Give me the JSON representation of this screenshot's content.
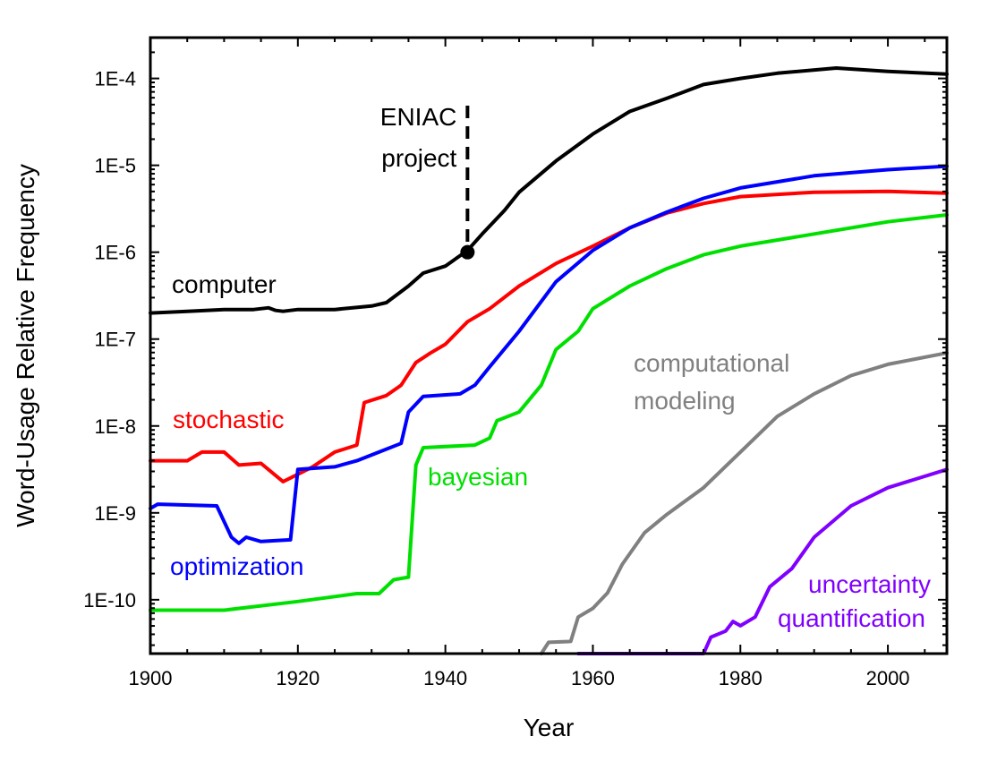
{
  "chart_data": {
    "type": "line",
    "title": "",
    "xlabel": "Year",
    "ylabel": "Word-Usage Relative Frequency",
    "yscale": "log",
    "xlim": [
      1900,
      2008
    ],
    "ylim_log10": [
      -10.62,
      -3.53
    ],
    "xticks": [
      1900,
      1920,
      1940,
      1960,
      1980,
      2000
    ],
    "xtick_labels": [
      "1900",
      "1920",
      "1940",
      "1960",
      "1980",
      "2000"
    ],
    "yticks_log10": [
      -4,
      -5,
      -6,
      -7,
      -8,
      -9,
      -10
    ],
    "ytick_labels": [
      "1E-4",
      "1E-5",
      "1E-6",
      "1E-7",
      "1E-8",
      "1E-9",
      "1E-10"
    ],
    "grid": false,
    "series": [
      {
        "name": "computer",
        "label": [
          "computer"
        ],
        "color": "#000000",
        "x": [
          1900,
          1905,
          1910,
          1914,
          1916,
          1917,
          1918,
          1920,
          1925,
          1930,
          1932,
          1935,
          1937,
          1940,
          1943,
          1945,
          1948,
          1950,
          1955,
          1960,
          1965,
          1970,
          1975,
          1980,
          1985,
          1993,
          2000,
          2008
        ],
        "y_log10": [
          -6.7,
          -6.68,
          -6.66,
          -6.66,
          -6.64,
          -6.67,
          -6.68,
          -6.66,
          -6.66,
          -6.62,
          -6.58,
          -6.39,
          -6.24,
          -6.16,
          -5.98,
          -5.79,
          -5.52,
          -5.31,
          -4.95,
          -4.64,
          -4.38,
          -4.23,
          -4.07,
          -4.0,
          -3.94,
          -3.88,
          -3.92,
          -3.95
        ]
      },
      {
        "name": "stochastic",
        "label": [
          "stochastic"
        ],
        "color": "#ff0000",
        "x": [
          1900,
          1905,
          1907,
          1910,
          1912,
          1915,
          1918,
          1922,
          1925,
          1928,
          1929,
          1932,
          1934,
          1936,
          1938,
          1940,
          1943,
          1946,
          1950,
          1955,
          1960,
          1965,
          1970,
          1975,
          1980,
          1990,
          2000,
          2008
        ],
        "y_log10": [
          -8.4,
          -8.4,
          -8.3,
          -8.3,
          -8.45,
          -8.43,
          -8.64,
          -8.47,
          -8.3,
          -8.22,
          -7.73,
          -7.65,
          -7.53,
          -7.27,
          -7.16,
          -7.06,
          -6.8,
          -6.65,
          -6.39,
          -6.13,
          -5.93,
          -5.72,
          -5.55,
          -5.44,
          -5.36,
          -5.31,
          -5.3,
          -5.32
        ]
      },
      {
        "name": "optimization",
        "label": [
          "optimization"
        ],
        "color": "#0000ff",
        "x": [
          1900,
          1901,
          1909,
          1911,
          1912,
          1913,
          1915,
          1919,
          1920,
          1925,
          1928,
          1931,
          1934,
          1935,
          1937,
          1942,
          1944,
          1946,
          1950,
          1955,
          1960,
          1965,
          1970,
          1975,
          1980,
          1990,
          2000,
          2008
        ],
        "y_log10": [
          -8.95,
          -8.9,
          -8.92,
          -9.28,
          -9.35,
          -9.28,
          -9.33,
          -9.31,
          -8.5,
          -8.47,
          -8.4,
          -8.3,
          -8.2,
          -7.84,
          -7.66,
          -7.63,
          -7.53,
          -7.32,
          -6.91,
          -6.34,
          -5.98,
          -5.72,
          -5.54,
          -5.38,
          -5.26,
          -5.12,
          -5.05,
          -5.01
        ]
      },
      {
        "name": "bayesian",
        "label": [
          "bayesian"
        ],
        "color": "#00e000",
        "x": [
          1900,
          1910,
          1920,
          1928,
          1931,
          1933,
          1935,
          1936,
          1937,
          1944,
          1946,
          1947,
          1950,
          1953,
          1955,
          1958,
          1960,
          1965,
          1970,
          1975,
          1980,
          1990,
          2000,
          2008
        ],
        "y_log10": [
          -10.12,
          -10.12,
          -10.02,
          -9.93,
          -9.93,
          -9.77,
          -9.74,
          -8.45,
          -8.25,
          -8.22,
          -8.14,
          -7.94,
          -7.84,
          -7.53,
          -7.12,
          -6.91,
          -6.65,
          -6.39,
          -6.19,
          -6.03,
          -5.93,
          -5.79,
          -5.65,
          -5.57
        ]
      },
      {
        "name": "computational modeling",
        "label": [
          "computational",
          "modeling"
        ],
        "color": "#808080",
        "x": [
          1953,
          1954,
          1957,
          1958,
          1960,
          1962,
          1964,
          1967,
          1970,
          1975,
          1980,
          1985,
          1990,
          1995,
          2000,
          2008
        ],
        "y_log10": [
          -10.62,
          -10.49,
          -10.48,
          -10.2,
          -10.1,
          -9.92,
          -9.59,
          -9.23,
          -9.02,
          -8.71,
          -8.3,
          -7.89,
          -7.63,
          -7.42,
          -7.29,
          -7.16
        ]
      },
      {
        "name": "uncertainty quantification",
        "label": [
          "uncertainty",
          "quantification"
        ],
        "color": "#8000ff",
        "x": [
          1958,
          1975,
          1976,
          1978,
          1979,
          1980,
          1982,
          1984,
          1987,
          1990,
          1995,
          2000,
          2008
        ],
        "y_log10": [
          -10.62,
          -10.62,
          -10.43,
          -10.36,
          -10.25,
          -10.3,
          -10.2,
          -9.85,
          -9.64,
          -9.28,
          -8.92,
          -8.71,
          -8.5
        ]
      }
    ],
    "annotations": [
      {
        "text": [
          "ENIAC",
          "project"
        ],
        "x": 1943,
        "y_log10": -6.0,
        "marker": "dot",
        "line": "dashed"
      }
    ]
  }
}
